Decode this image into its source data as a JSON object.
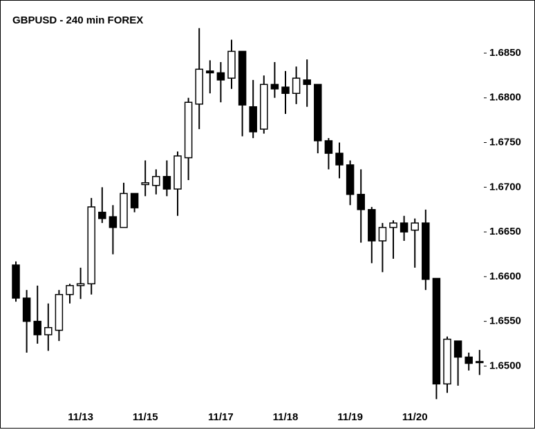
{
  "chart_data": {
    "type": "candlestick",
    "title": "GBPUSD - 240 min  FOREX",
    "categories": [
      null,
      null,
      null,
      null,
      null,
      null,
      "11/13",
      null,
      null,
      null,
      null,
      null,
      "11/15",
      null,
      null,
      null,
      null,
      null,
      null,
      "11/17",
      null,
      null,
      null,
      null,
      null,
      "11/18",
      null,
      null,
      null,
      null,
      null,
      "11/19",
      null,
      null,
      null,
      null,
      null,
      "11/20",
      null,
      null,
      null,
      null,
      null,
      null
    ],
    "open": [
      1.6613,
      1.6576,
      1.655,
      1.6535,
      1.654,
      1.658,
      1.659,
      1.6592,
      1.6672,
      1.6667,
      1.6655,
      1.6693,
      1.6703,
      1.6702,
      1.6712,
      1.6698,
      1.6733,
      1.6793,
      1.683,
      1.6828,
      1.6822,
      1.6852,
      1.679,
      1.6765,
      1.6815,
      1.6812,
      1.6805,
      1.682,
      1.6815,
      1.6752,
      1.6738,
      1.6725,
      1.6692,
      1.6675,
      1.664,
      1.6655,
      1.666,
      1.6652,
      1.666,
      1.6598,
      1.648,
      1.6528,
      1.651,
      1.6505
    ],
    "high": [
      1.6617,
      1.6585,
      1.659,
      1.657,
      1.6585,
      1.6592,
      1.661,
      1.6688,
      1.67,
      1.668,
      1.6705,
      1.6693,
      1.673,
      1.672,
      1.673,
      1.674,
      1.68,
      1.6878,
      1.6842,
      1.684,
      1.6865,
      1.6852,
      1.682,
      1.6825,
      1.684,
      1.683,
      1.6835,
      1.6843,
      1.6815,
      1.6755,
      1.675,
      1.673,
      1.672,
      1.6678,
      1.666,
      1.6663,
      1.6668,
      1.6665,
      1.6675,
      1.6598,
      1.6533,
      1.6528,
      1.6515,
      1.6518
    ],
    "low": [
      1.6572,
      1.6515,
      1.6525,
      1.6517,
      1.6528,
      1.657,
      1.6575,
      1.658,
      1.666,
      1.6625,
      1.6655,
      1.6672,
      1.669,
      1.6692,
      1.669,
      1.6668,
      1.6708,
      1.6765,
      1.6805,
      1.6795,
      1.681,
      1.6757,
      1.6755,
      1.676,
      1.68,
      1.6782,
      1.6793,
      1.679,
      1.6738,
      1.672,
      1.671,
      1.668,
      1.6638,
      1.6615,
      1.6605,
      1.662,
      1.664,
      1.661,
      1.6585,
      1.6463,
      1.647,
      1.6478,
      1.6495,
      1.649
    ],
    "close": [
      1.6576,
      1.655,
      1.6535,
      1.6543,
      1.658,
      1.659,
      1.6592,
      1.6678,
      1.6665,
      1.6655,
      1.6693,
      1.6677,
      1.6705,
      1.6712,
      1.6698,
      1.6735,
      1.6795,
      1.6832,
      1.6828,
      1.682,
      1.6852,
      1.6792,
      1.6762,
      1.6815,
      1.681,
      1.6805,
      1.6822,
      1.6815,
      1.6752,
      1.6738,
      1.6725,
      1.6692,
      1.6675,
      1.664,
      1.6655,
      1.666,
      1.665,
      1.666,
      1.6597,
      1.648,
      1.653,
      1.651,
      1.6503,
      1.6505
    ],
    "ylim": [
      1.6454,
      1.6894
    ],
    "yticks": [
      {
        "value": 1.65,
        "label": "1.6500"
      },
      {
        "value": 1.655,
        "label": "1.6550"
      },
      {
        "value": 1.66,
        "label": "1.6600"
      },
      {
        "value": 1.665,
        "label": "1.6650"
      },
      {
        "value": 1.67,
        "label": "1.6700"
      },
      {
        "value": 1.675,
        "label": "1.6750"
      },
      {
        "value": 1.68,
        "label": "1.6800"
      },
      {
        "value": 1.685,
        "label": "1.6850"
      }
    ],
    "up_color": "#ffffff",
    "down_color": "#000000"
  }
}
